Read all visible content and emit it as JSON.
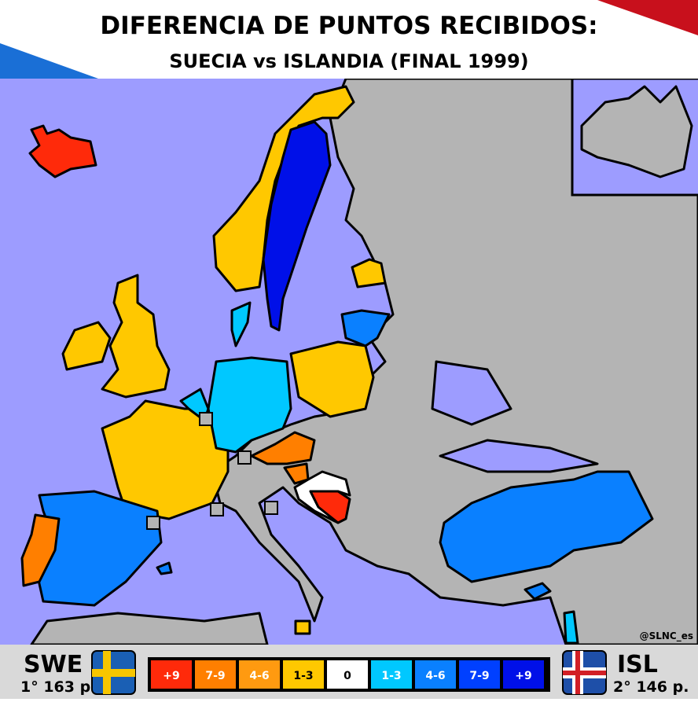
{
  "header": {
    "title": "DIFERENCIA DE PUNTOS RECIBIDOS:",
    "subtitle": "SUECIA vs ISLANDIA (FINAL 1999)"
  },
  "credit": "@SLNC_es",
  "left": {
    "code": "SWE",
    "result": "1° 163 p."
  },
  "right": {
    "code": "ISL",
    "result": "2° 146 p."
  },
  "legend": [
    {
      "label": "+9",
      "color": "#ff2a0a"
    },
    {
      "label": "7-9",
      "color": "#ff7f00"
    },
    {
      "label": "4-6",
      "color": "#ff9a10"
    },
    {
      "label": "1-3",
      "color": "#ffc800"
    },
    {
      "label": "0",
      "color": "#ffffff"
    },
    {
      "label": "1-3",
      "color": "#00c8ff"
    },
    {
      "label": "4-6",
      "color": "#0a80ff"
    },
    {
      "label": "7-9",
      "color": "#0040ff"
    },
    {
      "label": "+9",
      "color": "#0010e8"
    }
  ]
}
